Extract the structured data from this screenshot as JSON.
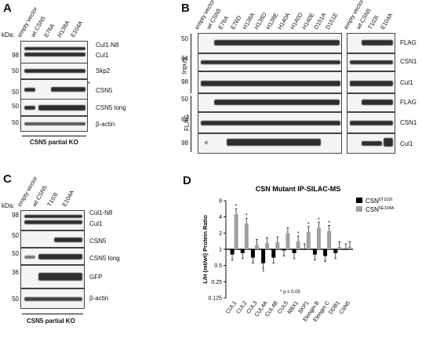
{
  "panels": {
    "A": {
      "letter": "A",
      "kda": "kDa:",
      "lanes": [
        "empty vector",
        "wt CSN5",
        "E76A",
        "H138A",
        "E104A"
      ],
      "mw": [
        "98",
        "50",
        "50",
        "50",
        "50"
      ],
      "labels": [
        "Cul1-N8",
        "Cul1",
        "Skp2",
        "CSN5",
        "CSN5 long",
        "β-actin"
      ],
      "asterisk": "*",
      "footer": "CSN5 partial KO"
    },
    "B": {
      "letter": "B",
      "lanes_left": [
        "empty vector",
        "wt CSN5",
        "E76A",
        "E76D",
        "H138A",
        "H138D",
        "H138E",
        "H140A",
        "H140D",
        "H140E",
        "D151A",
        "D151E"
      ],
      "lanes_right": [
        "empty vector",
        "wt CSN5",
        "T103I",
        "E104A"
      ],
      "mw": [
        "50",
        "64",
        "98",
        "50",
        "64",
        "98"
      ],
      "labels": [
        "FLAG",
        "CSN1",
        "Cul1",
        "FLAG",
        "CSN1",
        "Cul1"
      ],
      "group_inputs": "Inputs",
      "group_flag": "FLAG"
    },
    "C": {
      "letter": "C",
      "kda": "kDa:",
      "lanes": [
        "empty vector",
        "wt CSN5",
        "T103I",
        "E104A"
      ],
      "mw": [
        "98",
        "50",
        "50",
        "36",
        "50"
      ],
      "labels": [
        "Cul1-N8",
        "Cul1",
        "CSN5",
        "CSN5 long",
        "GFP",
        "β-actin"
      ],
      "footer": "CSN5 partial KO"
    },
    "D": {
      "letter": "D",
      "note": "* p ≤ 0.05"
    }
  },
  "chart_data": {
    "type": "bar",
    "title": "CSN Mutant IP-SILAC-MS",
    "ylabel": "L/H (mt/wt) Protein Ratio",
    "y_scale": "log2",
    "ylim": [
      0.125,
      8
    ],
    "yticks": [
      "8",
      "4",
      "2",
      "1",
      "0.5",
      "0.25",
      "0.125"
    ],
    "categories": [
      "CUL1",
      "CUL2",
      "CUL3",
      "CUL4A",
      "CUL4B",
      "CUL5",
      "RBX1",
      "SKP1",
      "Elongin B",
      "Elongin C",
      "DDB1",
      "CSN5"
    ],
    "legend": {
      "position": "top-right"
    },
    "series": [
      {
        "name": "CSN5T103I",
        "base": "CSN",
        "sup": "5T103I",
        "color": "#000000",
        "values": [
          0.8,
          0.85,
          0.7,
          0.55,
          0.7,
          0.95,
          0.85,
          1.0,
          0.8,
          0.75,
          0.85,
          1.0
        ],
        "significant": [
          false,
          false,
          false,
          true,
          false,
          false,
          false,
          false,
          false,
          false,
          false,
          false
        ]
      },
      {
        "name": "CSN5E104A",
        "base": "CSN",
        "sup": "5E104A",
        "color": "#a0a0a0",
        "values": [
          4.5,
          3.0,
          1.2,
          1.3,
          1.35,
          2.0,
          1.4,
          2.1,
          2.5,
          2.2,
          1.1,
          1.1
        ],
        "significant": [
          true,
          true,
          false,
          false,
          false,
          false,
          true,
          true,
          true,
          true,
          false,
          false
        ]
      }
    ]
  }
}
